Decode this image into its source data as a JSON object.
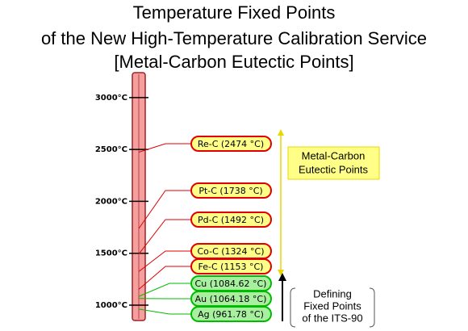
{
  "chart_data": {
    "type": "scale",
    "title": [
      "Temperature Fixed Points",
      "of the New High-Temperature Calibration Service",
      "[Metal-Carbon Eutectic Points]"
    ],
    "ylim": [
      860,
      3240
    ],
    "yticks": [
      {
        "value": 1000,
        "label": "1000°C"
      },
      {
        "value": 1500,
        "label": "1500°C"
      },
      {
        "value": 2000,
        "label": "2000°C"
      },
      {
        "value": 2500,
        "label": "2500°C"
      },
      {
        "value": 3000,
        "label": "3000°C"
      }
    ],
    "groups": [
      {
        "label": [
          "Metal-Carbon",
          "Eutectic Points"
        ],
        "color": "#e00000",
        "fill": "#ffff88",
        "points": [
          {
            "label": "Re-C (2474 °C)",
            "value": 2474
          },
          {
            "label": "Pt-C (1738 °C)",
            "value": 1738
          },
          {
            "label": "Pd-C (1492 °C)",
            "value": 1492
          },
          {
            "label": "Co-C (1324 °C)",
            "value": 1324
          },
          {
            "label": "Fe-C (1153 °C)",
            "value": 1153
          }
        ]
      },
      {
        "label": [
          "Defining",
          "Fixed Points",
          "of the ITS-90"
        ],
        "color": "#00bb00",
        "fill": "#a8f0a0",
        "points": [
          {
            "label": "Cu (1084.62 °C)",
            "value": 1084.62
          },
          {
            "label": "Au (1064.18 °C)",
            "value": 1064.18
          },
          {
            "label": "Ag (961.78 °C)",
            "value": 961.78
          }
        ]
      }
    ]
  }
}
